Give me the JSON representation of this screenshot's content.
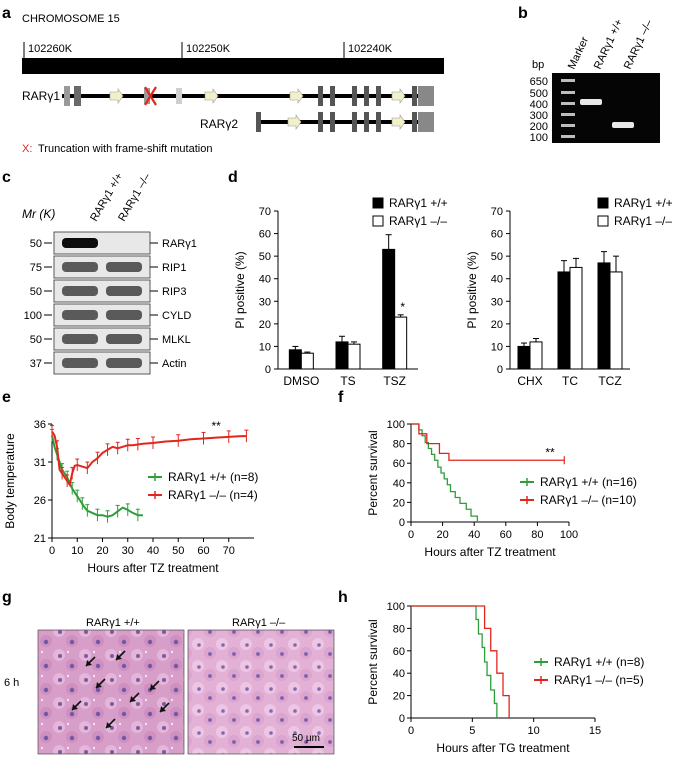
{
  "panel_labels": [
    "a",
    "b",
    "c",
    "d",
    "e",
    "f",
    "g",
    "h"
  ],
  "panel_a": {
    "title": "CHROMOSOME 15",
    "coords": [
      "102260K",
      "102250K",
      "102240K"
    ],
    "isoform1": "RARγ1",
    "isoform2": "RARγ2",
    "legend_x": "X:",
    "legend_text": "Truncation with frame-shift mutation"
  },
  "panel_b": {
    "bp_label": "bp",
    "ladder": [
      "650",
      "500",
      "400",
      "300",
      "200",
      "100"
    ],
    "lanes": [
      "Marker",
      "RARγ1 +/+",
      "RARγ1 –/–"
    ]
  },
  "panel_c": {
    "mr_label": "Mr (K)",
    "lanes": [
      "RARγ1 +/+",
      "RARγ1 –/–"
    ],
    "rows": [
      {
        "mw": "50",
        "name": "RARγ1"
      },
      {
        "mw": "75",
        "name": "RIP1"
      },
      {
        "mw": "50",
        "name": "RIP3"
      },
      {
        "mw": "100",
        "name": "CYLD"
      },
      {
        "mw": "50",
        "name": "MLKL"
      },
      {
        "mw": "37",
        "name": "Actin"
      }
    ]
  },
  "chart_data": [
    {
      "id": "d-left",
      "type": "bar",
      "ylabel": "PI positive (%)",
      "ylim": [
        0,
        70
      ],
      "yticks": [
        "0",
        "10",
        "20",
        "30",
        "40",
        "50",
        "60",
        "70"
      ],
      "categories": [
        "DMSO",
        "TS",
        "TSZ"
      ],
      "series": [
        {
          "name": "RARγ1 +/+",
          "values": [
            8.5,
            12,
            53
          ],
          "errors": [
            1.5,
            2.5,
            6.5
          ]
        },
        {
          "name": "RARγ1 –/–",
          "values": [
            7,
            11,
            23
          ],
          "errors": [
            0.5,
            1,
            1
          ]
        }
      ],
      "annotation": "*"
    },
    {
      "id": "d-right",
      "type": "bar",
      "ylabel": "PI positive (%)",
      "ylim": [
        0,
        70
      ],
      "yticks": [
        "0",
        "10",
        "20",
        "30",
        "40",
        "50",
        "60",
        "70"
      ],
      "categories": [
        "CHX",
        "TC",
        "TCZ"
      ],
      "series": [
        {
          "name": "RARγ1 +/+",
          "values": [
            10,
            43,
            47
          ],
          "errors": [
            1.5,
            5,
            5
          ]
        },
        {
          "name": "RARγ1 –/–",
          "values": [
            12,
            45,
            43
          ],
          "errors": [
            1.5,
            4,
            7
          ]
        }
      ]
    },
    {
      "id": "e",
      "type": "line",
      "xlabel": "Hours after TZ treatment",
      "ylabel": "Body temperature",
      "xlim": [
        0,
        80
      ],
      "ylim": [
        21,
        36
      ],
      "xticks": [
        "0",
        "10",
        "20",
        "30",
        "40",
        "50",
        "60",
        "70"
      ],
      "yticks": [
        "21",
        "26",
        "31",
        "36"
      ],
      "series": [
        {
          "name": "RARγ1 +/+ (n=8)",
          "color": "#2e9e3a",
          "x": [
            0,
            1,
            2,
            3,
            4,
            5,
            6,
            7,
            8,
            9,
            10,
            11,
            12,
            13,
            14,
            16,
            18,
            20,
            22,
            24,
            26,
            28,
            30,
            32,
            34,
            36
          ],
          "y": [
            34.5,
            33,
            32,
            31,
            30,
            29.5,
            29,
            28.2,
            27.5,
            27,
            26.5,
            26,
            25.5,
            25,
            24.6,
            24.3,
            24,
            24,
            23.8,
            24,
            24.5,
            25,
            24.7,
            24.3,
            24,
            24
          ]
        },
        {
          "name": "RARγ1 –/– (n=4)",
          "color": "#e3261d",
          "x": [
            0,
            1,
            2,
            3,
            4,
            5,
            6,
            7,
            8,
            9,
            10,
            12,
            14,
            16,
            18,
            20,
            22,
            24,
            26,
            28,
            30,
            32,
            34,
            36,
            40,
            45,
            50,
            55,
            60,
            65,
            70,
            75,
            77
          ],
          "y": [
            35,
            34.5,
            33,
            30,
            29.5,
            29,
            28.5,
            28,
            29.5,
            30.5,
            30.6,
            30.4,
            30.2,
            31,
            31.5,
            32.2,
            32.6,
            33,
            32.8,
            33,
            33.2,
            33.2,
            33.3,
            33.4,
            33.5,
            33.7,
            33.8,
            34,
            34.1,
            34.2,
            34.3,
            34.4,
            34.4
          ]
        }
      ],
      "annotation": "**"
    },
    {
      "id": "f",
      "type": "line",
      "xlabel": "Hours after TZ treatment",
      "ylabel": "Percent survival",
      "xlim": [
        0,
        100
      ],
      "ylim": [
        0,
        100
      ],
      "xticks": [
        "0",
        "20",
        "40",
        "60",
        "80",
        "100"
      ],
      "yticks": [
        "0",
        "20",
        "40",
        "60",
        "80",
        "100"
      ],
      "series": [
        {
          "name": "RARγ1 +/+ (n=16)",
          "color": "#2e9e3a",
          "x": [
            0,
            5,
            7,
            9,
            11,
            13,
            15,
            17,
            19,
            21,
            23,
            25,
            28,
            31,
            35,
            38,
            42
          ],
          "y": [
            100,
            94,
            88,
            81,
            75,
            69,
            63,
            56,
            50,
            44,
            38,
            31,
            25,
            19,
            13,
            6,
            0
          ]
        },
        {
          "name": "RARγ1 –/– (n=10)",
          "color": "#e3261d",
          "x": [
            0,
            5,
            10,
            14,
            18,
            24,
            97
          ],
          "y": [
            100,
            90,
            80,
            80,
            70,
            63,
            63
          ]
        }
      ],
      "annotation": "**"
    },
    {
      "id": "h",
      "type": "line",
      "xlabel": "Hours after TG treatment",
      "ylabel": "Percent survival",
      "xlim": [
        0,
        15
      ],
      "ylim": [
        0,
        100
      ],
      "xticks": [
        "0",
        "5",
        "10",
        "15"
      ],
      "yticks": [
        "0",
        "20",
        "40",
        "60",
        "80",
        "100"
      ],
      "series": [
        {
          "name": "RARγ1 +/+ (n=8)",
          "color": "#2e9e3a",
          "x": [
            0,
            5.3,
            5.5,
            5.8,
            6,
            6.2,
            6.5,
            6.8,
            7
          ],
          "y": [
            100,
            88,
            75,
            63,
            50,
            38,
            25,
            13,
            0
          ]
        },
        {
          "name": "RARγ1 –/– (n=5)",
          "color": "#e3261d",
          "x": [
            0,
            6,
            6.5,
            7,
            7.5,
            8
          ],
          "y": [
            100,
            80,
            60,
            40,
            20,
            0
          ]
        }
      ]
    }
  ],
  "panel_g": {
    "row_label": "6 h",
    "left_title": "RARγ1 +/+",
    "right_title": "RARγ1 –/–",
    "scale_bar": "50 μm"
  }
}
